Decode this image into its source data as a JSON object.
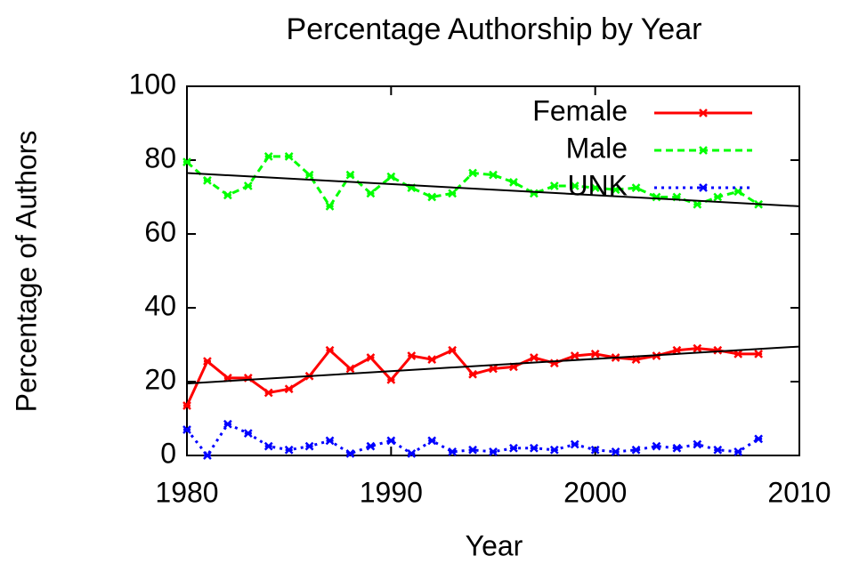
{
  "chart_data": {
    "type": "line",
    "title": "Percentage Authorship by Year",
    "x_label": "Year",
    "y_label": "Percentage of Authors",
    "x": [
      1980,
      1981,
      1982,
      1983,
      1984,
      1985,
      1986,
      1987,
      1988,
      1989,
      1990,
      1991,
      1992,
      1993,
      1994,
      1995,
      1996,
      1997,
      1998,
      1999,
      2000,
      2001,
      2002,
      2003,
      2004,
      2005,
      2006,
      2007,
      2008
    ],
    "series": [
      {
        "name": "Female",
        "color": "#ff0000",
        "dash": "solid",
        "values": [
          13.5,
          25.5,
          21,
          21,
          17,
          18,
          21.5,
          28.5,
          23.5,
          26.5,
          20.5,
          27,
          26,
          28.5,
          22,
          23.5,
          24,
          26.5,
          25,
          27,
          27.5,
          26.5,
          26,
          27,
          28.5,
          29,
          28.5,
          27.5,
          27.5
        ]
      },
      {
        "name": "Male",
        "color": "#00ff00",
        "dash": "dashed",
        "values": [
          79.5,
          74.5,
          70.5,
          73,
          81,
          81,
          76,
          67.5,
          76,
          71,
          75.5,
          72.5,
          70,
          71,
          76.5,
          76,
          74,
          71,
          73,
          73,
          72.5,
          72,
          72.5,
          70,
          70,
          68,
          70,
          71.5,
          68
        ]
      },
      {
        "name": "UNK",
        "color": "#0000ff",
        "dash": "dotted",
        "values": [
          7,
          0,
          8.5,
          6,
          2.5,
          1.5,
          2.5,
          4,
          0.5,
          2.5,
          4,
          0.5,
          4,
          1,
          1.5,
          1,
          2,
          2,
          1.5,
          3,
          1.5,
          1,
          1.5,
          2.5,
          2,
          3,
          1.5,
          1,
          4.5
        ]
      }
    ],
    "trend_lines": [
      {
        "color": "#000000",
        "x": [
          1980,
          2010
        ],
        "values": [
          76.5,
          67.5
        ]
      },
      {
        "color": "#000000",
        "x": [
          1980,
          2010
        ],
        "values": [
          19.5,
          29.5
        ]
      }
    ],
    "xlim": [
      1980,
      2010
    ],
    "xticks": [
      1980,
      1990,
      2000,
      2010
    ],
    "ylim": [
      0,
      100
    ],
    "yticks": [
      0,
      20,
      40,
      60,
      80,
      100
    ],
    "legend": "top-right"
  }
}
